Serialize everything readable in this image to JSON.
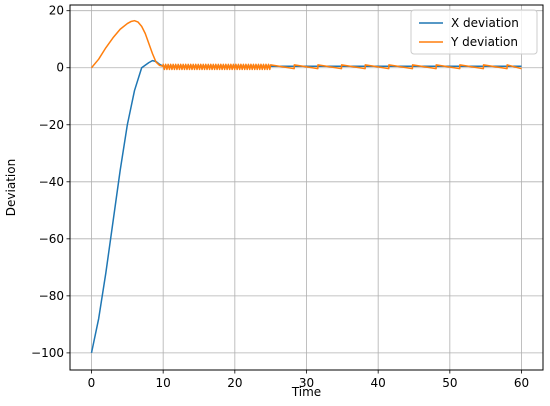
{
  "chart_data": {
    "type": "line",
    "xlabel": "Time",
    "ylabel": "Deviation",
    "xlim": [
      -3,
      63
    ],
    "ylim": [
      -106,
      22
    ],
    "xticks": [
      0,
      10,
      20,
      30,
      40,
      50,
      60
    ],
    "yticks": [
      -100,
      -80,
      -60,
      -40,
      -20,
      0,
      20
    ],
    "grid": true,
    "legend_position": "top-right",
    "series": [
      {
        "name": "X deviation",
        "color": "#1f77b4",
        "x": [
          0,
          1,
          2,
          3,
          4,
          5,
          6,
          7,
          8,
          8.5,
          9,
          9.5,
          10,
          12,
          15,
          20,
          25,
          30,
          40,
          50,
          60
        ],
        "y": [
          -100,
          -88,
          -72,
          -54,
          -36,
          -20,
          -8,
          0,
          1.8,
          2.5,
          2.2,
          1.2,
          0.5,
          0.5,
          0.5,
          0.5,
          0.5,
          0.5,
          0.5,
          0.5,
          0.5
        ]
      },
      {
        "name": "Y deviation",
        "color": "#ff7f0e",
        "x": [
          0,
          1,
          2,
          3,
          4,
          5,
          5.5,
          6,
          6.5,
          7,
          7.5,
          8,
          8.5,
          9,
          9.5,
          10
        ],
        "y": [
          0,
          3,
          7,
          10.5,
          13.5,
          15.5,
          16.2,
          16.5,
          16,
          14.5,
          12,
          8.5,
          5,
          2,
          0.8,
          0.5
        ],
        "tail": {
          "dense": {
            "start": 10,
            "end": 25,
            "amplitude": 0.9,
            "period": 0.35,
            "center": 0.3
          },
          "sawtooth": {
            "start": 25,
            "end": 60,
            "period": 3.3,
            "low": -0.3,
            "high": 1.0
          }
        }
      }
    ]
  }
}
